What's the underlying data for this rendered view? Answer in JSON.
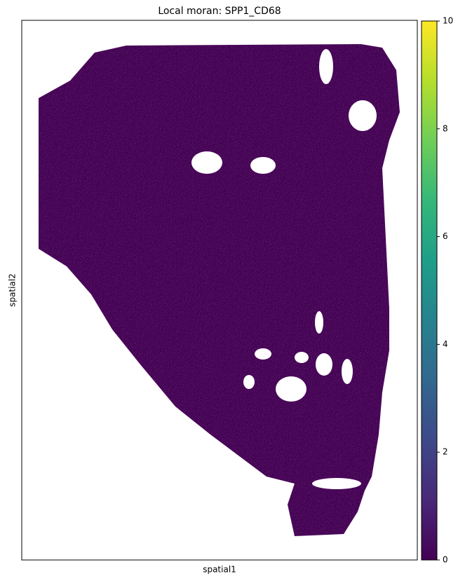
{
  "chart_data": {
    "type": "scatter",
    "title": "Local moran: SPP1_CD68",
    "xlabel": "spatial1",
    "ylabel": "spatial2",
    "colormap": "viridis",
    "clim": [
      0,
      10
    ],
    "cticks": [
      0,
      2,
      4,
      6,
      8,
      10
    ]
  }
}
